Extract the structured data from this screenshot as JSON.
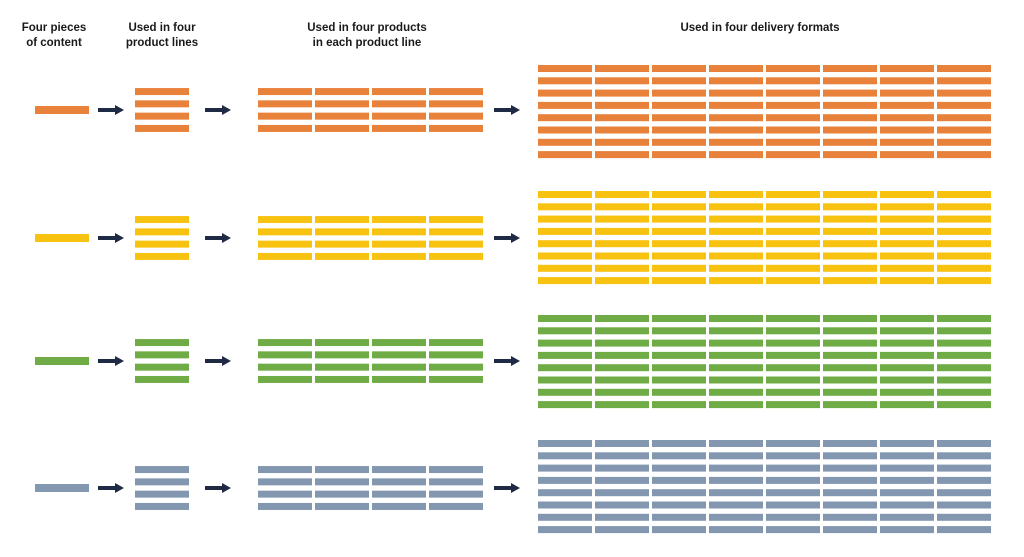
{
  "headers": {
    "col1": "Four pieces\nof content",
    "col2": "Used in four\nproduct lines",
    "col3": "Used in four products\nin each product line",
    "col4": "Used in four delivery formats"
  },
  "arrow_color": "#1f2a44",
  "rows": [
    {
      "name": "orange",
      "color": "#e8823a"
    },
    {
      "name": "yellow",
      "color": "#f8c211"
    },
    {
      "name": "green",
      "color": "#6fac46"
    },
    {
      "name": "gray",
      "color": "#8497b0"
    }
  ],
  "stages": [
    {
      "name": "content",
      "columns": 1,
      "bars_per_column": 1
    },
    {
      "name": "product-lines",
      "columns": 1,
      "bars_per_column": 4
    },
    {
      "name": "products",
      "columns": 4,
      "bars_per_column": 4
    },
    {
      "name": "delivery-formats",
      "columns": 8,
      "bars_per_column": 8
    }
  ]
}
